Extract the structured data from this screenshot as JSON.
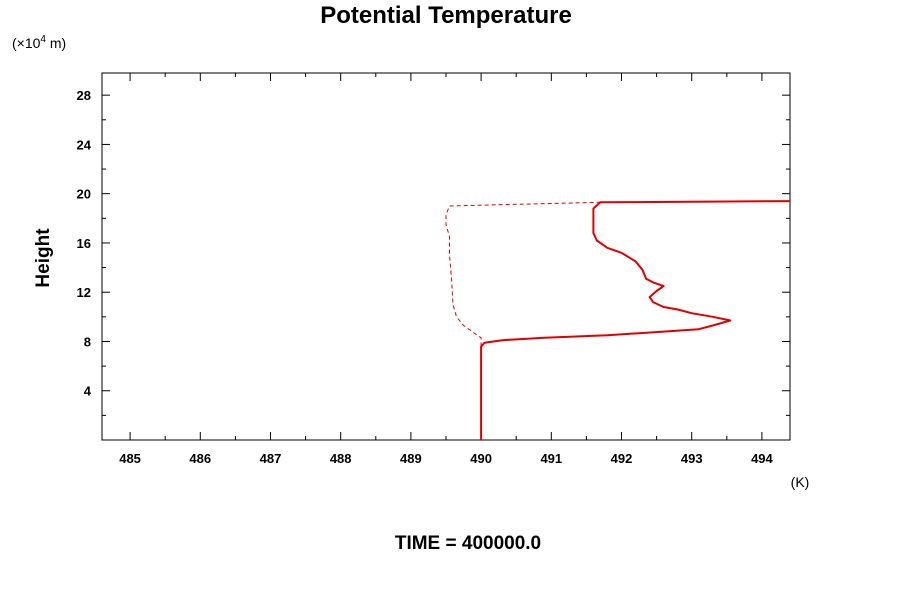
{
  "chart_data": {
    "type": "line",
    "title": "Potential Temperature",
    "ylabel": "Height",
    "y_scale_prefix": "(×10",
    "y_scale_exponent": "4",
    "y_scale_unit": " m)",
    "x_unit": "(K)",
    "footer": "TIME = 400000.0",
    "xlim": [
      484.6,
      494.4
    ],
    "ylim": [
      0,
      29.8
    ],
    "x_ticks": [
      485,
      486,
      487,
      488,
      489,
      490,
      491,
      492,
      493,
      494
    ],
    "y_ticks": [
      4,
      8,
      12,
      16,
      20,
      24,
      28
    ],
    "grid": false,
    "line_color": "#e00000",
    "series": [
      {
        "style": "solid",
        "points": [
          [
            490.0,
            0.0
          ],
          [
            490.0,
            4.0
          ],
          [
            490.0,
            7.6
          ],
          [
            490.05,
            7.9
          ],
          [
            490.3,
            8.1
          ],
          [
            490.9,
            8.3
          ],
          [
            491.8,
            8.5
          ],
          [
            492.6,
            8.8
          ],
          [
            493.1,
            9.0
          ],
          [
            493.3,
            9.3
          ],
          [
            493.55,
            9.7
          ],
          [
            493.3,
            10.0
          ],
          [
            493.0,
            10.3
          ],
          [
            492.8,
            10.6
          ],
          [
            492.6,
            10.8
          ],
          [
            492.45,
            11.2
          ],
          [
            492.4,
            11.6
          ],
          [
            492.5,
            12.1
          ],
          [
            492.6,
            12.5
          ],
          [
            492.45,
            12.8
          ],
          [
            492.35,
            13.1
          ],
          [
            492.3,
            13.8
          ],
          [
            492.2,
            14.5
          ],
          [
            492.0,
            15.2
          ],
          [
            491.8,
            15.6
          ],
          [
            491.65,
            16.2
          ],
          [
            491.6,
            16.8
          ],
          [
            491.6,
            17.8
          ],
          [
            491.6,
            18.8
          ],
          [
            491.7,
            19.3
          ],
          [
            493.0,
            19.35
          ],
          [
            494.4,
            19.4
          ]
        ]
      },
      {
        "style": "dashed",
        "points": [
          [
            490.0,
            7.6
          ],
          [
            490.0,
            8.3
          ],
          [
            489.9,
            8.7
          ],
          [
            489.75,
            9.3
          ],
          [
            489.65,
            10.0
          ],
          [
            489.6,
            11.0
          ],
          [
            489.58,
            13.0
          ],
          [
            489.55,
            15.0
          ],
          [
            489.55,
            16.5
          ],
          [
            489.5,
            17.5
          ],
          [
            489.5,
            18.3
          ],
          [
            489.55,
            19.0
          ],
          [
            490.2,
            19.1
          ],
          [
            491.0,
            19.2
          ],
          [
            491.7,
            19.3
          ]
        ]
      }
    ]
  }
}
